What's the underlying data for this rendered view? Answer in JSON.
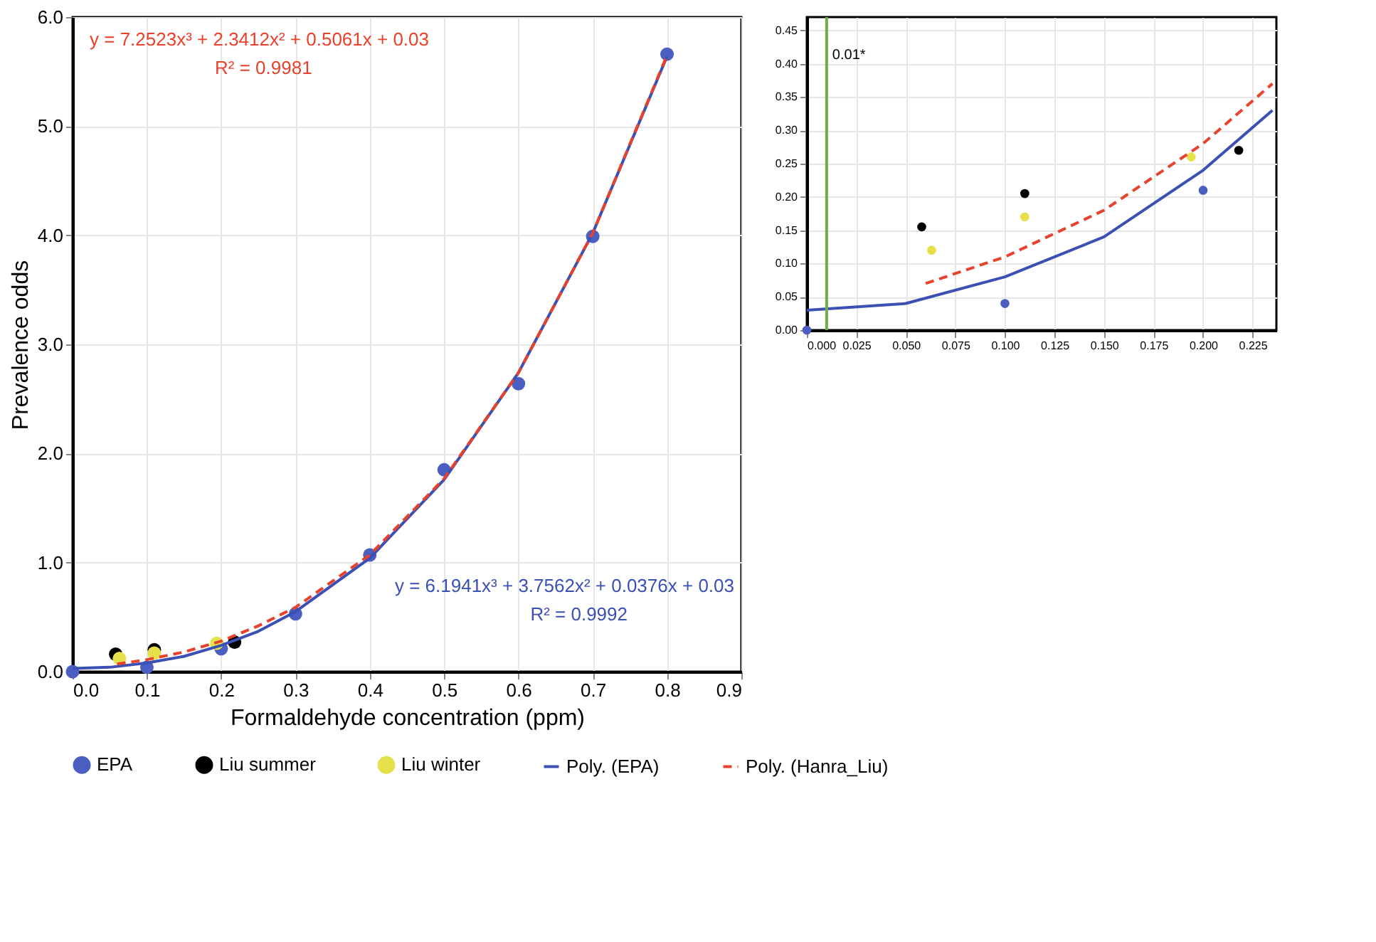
{
  "chart_data": [
    {
      "type": "scatter",
      "xlabel": "Formaldehyde concentration (ppm)",
      "ylabel": "Prevalence odds",
      "grid": true,
      "legend": "bottom",
      "xlim": [
        0,
        0.9
      ],
      "xticks": [
        {
          "value": 0,
          "label": "0.0"
        },
        0.1,
        0.2,
        0.3,
        0.4,
        0.5,
        0.6,
        0.7,
        0.8,
        0.9
      ],
      "ylim": [
        0,
        6
      ],
      "yticks": [
        {
          "value": 0,
          "label": "0.0"
        },
        {
          "value": 1,
          "label": "1.0"
        },
        {
          "value": 2,
          "label": "2.0"
        },
        {
          "value": 3,
          "label": "3.0"
        },
        {
          "value": 4,
          "label": "4.0"
        },
        {
          "value": 5,
          "label": "5.0"
        },
        {
          "value": 6,
          "label": "6.0"
        }
      ],
      "series": [
        {
          "name": "EPA",
          "marker": "circle",
          "color": "#4a5fc1",
          "x": [
            0,
            0.1,
            0.2,
            0.3,
            0.4,
            0.5,
            0.6,
            0.7,
            0.8
          ],
          "values": [
            0,
            0.04,
            0.21,
            0.53,
            1.07,
            1.85,
            2.64,
            3.99,
            5.66
          ]
        },
        {
          "name": "Liu summer",
          "marker": "circle",
          "color": "#000000",
          "x": [
            0.058,
            0.11,
            0.218
          ],
          "values": [
            0.16,
            0.2,
            0.27
          ]
        },
        {
          "name": "Liu winter",
          "marker": "circle",
          "color": "#e6e04a",
          "x": [
            0.063,
            0.11,
            0.194
          ],
          "values": [
            0.12,
            0.17,
            0.26
          ]
        },
        {
          "name": "Poly. (EPA)",
          "type": "line",
          "line_style": "solid",
          "color": "#3c50b4",
          "x": [
            0,
            0.05,
            0.1,
            0.15,
            0.2,
            0.25,
            0.3,
            0.4,
            0.5,
            0.6,
            0.7,
            0.8
          ],
          "values": [
            0.03,
            0.04,
            0.08,
            0.14,
            0.24,
            0.37,
            0.55,
            1.04,
            1.76,
            2.74,
            4.02,
            5.64
          ]
        },
        {
          "name": "Poly. (Hanra_Liu)",
          "type": "line",
          "line_style": "dashed",
          "color": "#e8412c",
          "x": [
            0.06,
            0.1,
            0.15,
            0.2,
            0.25,
            0.3,
            0.4,
            0.5,
            0.6,
            0.7,
            0.8
          ],
          "values": [
            0.07,
            0.11,
            0.18,
            0.28,
            0.42,
            0.59,
            1.07,
            1.77,
            2.74,
            4.02,
            5.65
          ]
        }
      ],
      "annotations": [
        "y = 7.2523x³ + 2.3412x² + 0.5061x + 0.03",
        "R² = 0.9981",
        "y = 6.1941x³ + 3.7562x² + 0.0376x + 0.03",
        "R² = 0.9992"
      ]
    },
    {
      "type": "scatter",
      "grid": true,
      "xlim": [
        0,
        0.237
      ],
      "xticks": [
        {
          "value": 0,
          "label": "0.000"
        },
        0.025,
        {
          "value": 0.05,
          "label": "0.050"
        },
        0.075,
        {
          "value": 0.1,
          "label": "0.100"
        },
        0.125,
        {
          "value": 0.15,
          "label": "0.150"
        },
        0.175,
        {
          "value": 0.2,
          "label": "0.200"
        },
        0.225
      ],
      "ylim": [
        0,
        0.47
      ],
      "yticks": [
        {
          "value": 0,
          "label": "0.00"
        },
        0.05,
        {
          "value": 0.1,
          "label": "0.10"
        },
        0.15,
        {
          "value": 0.2,
          "label": "0.20"
        },
        0.25,
        {
          "value": 0.3,
          "label": "0.30"
        },
        0.35,
        {
          "value": 0.4,
          "label": "0.40"
        },
        0.45
      ],
      "series": [
        {
          "marker": "circle",
          "color": "#4a5fc1",
          "x": [
            0,
            0.1,
            0.2
          ],
          "values": [
            0,
            0.04,
            0.21
          ]
        },
        {
          "marker": "circle",
          "color": "#000000",
          "x": [
            0.058,
            0.11,
            0.218
          ],
          "values": [
            0.155,
            0.205,
            0.27
          ]
        },
        {
          "marker": "circle",
          "color": "#e6e04a",
          "x": [
            0.063,
            0.11,
            0.194
          ],
          "values": [
            0.12,
            0.17,
            0.26
          ]
        },
        {
          "type": "line",
          "line_style": "solid",
          "color": "#3c50b4",
          "x": [
            0,
            0.05,
            0.1,
            0.15,
            0.2,
            0.235
          ],
          "values": [
            0.03,
            0.04,
            0.08,
            0.14,
            0.24,
            0.33
          ]
        },
        {
          "type": "line",
          "line_style": "dashed",
          "color": "#e8412c",
          "x": [
            0.06,
            0.1,
            0.15,
            0.2,
            0.235
          ],
          "values": [
            0.07,
            0.11,
            0.18,
            0.28,
            0.37
          ]
        }
      ],
      "ref_lines": [
        {
          "axis": "x",
          "value": 0.01,
          "label": "0.01*",
          "color": "#70ad47"
        }
      ]
    }
  ]
}
